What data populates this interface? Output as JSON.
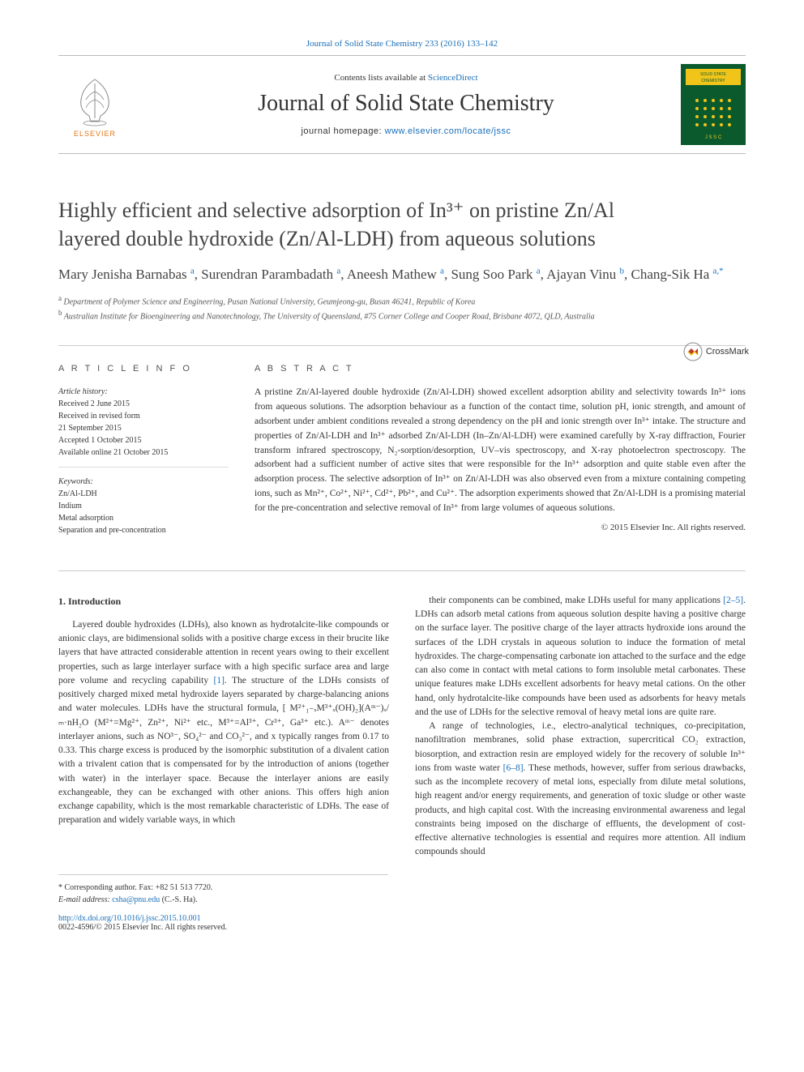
{
  "top_journal_link": "Journal of Solid State Chemistry 233 (2016) 133–142",
  "masthead": {
    "contents_prefix": "Contents lists available at ",
    "contents_link": "ScienceDirect",
    "journal_name": "Journal of Solid State Chemistry",
    "homepage_prefix": "journal homepage: ",
    "homepage_link": "www.elsevier.com/locate/jssc",
    "elsevier_label": "ELSEVIER",
    "cover_title_top": "SOLID STATE",
    "cover_title_bottom": "CHEMISTRY"
  },
  "crossmark_label": "CrossMark",
  "title_line1": "Highly efficient and selective adsorption of In³⁺ on pristine Zn/Al",
  "title_line2": "layered double hydroxide (Zn/Al-LDH) from aqueous solutions",
  "authors_html": "Mary Jenisha Barnabas <sup>a</sup>, Surendran Parambadath <sup>a</sup>, Aneesh Mathew <sup>a</sup>, Sung Soo Park <sup>a</sup>, Ajayan Vinu <sup>b</sup>, Chang-Sik Ha <sup>a,*</sup>",
  "authors": [
    {
      "name": "Mary Jenisha Barnabas",
      "aff": "a"
    },
    {
      "name": "Surendran Parambadath",
      "aff": "a"
    },
    {
      "name": "Aneesh Mathew",
      "aff": "a"
    },
    {
      "name": "Sung Soo Park",
      "aff": "a"
    },
    {
      "name": "Ajayan Vinu",
      "aff": "b"
    },
    {
      "name": "Chang-Sik Ha",
      "aff": "a,*"
    }
  ],
  "affiliations": {
    "a": "Department of Polymer Science and Engineering, Pusan National University, Geumjeong-gu, Busan 46241, Republic of Korea",
    "b": "Australian Institute for Bioengineering and Nanotechnology, The University of Queensland, #75 Corner College and Cooper Road, Brisbane 4072, QLD, Australia"
  },
  "article_info_heading": "A R T I C L E  I N F O",
  "abstract_heading": "A B S T R A C T",
  "history_heading": "Article history:",
  "history": [
    "Received 2 June 2015",
    "Received in revised form",
    "21 September 2015",
    "Accepted 1 October 2015",
    "Available online 21 October 2015"
  ],
  "keywords_heading": "Keywords:",
  "keywords": [
    "Zn/Al-LDH",
    "Indium",
    "Metal adsorption",
    "Separation and pre-concentration"
  ],
  "abstract": "A pristine Zn/Al-layered double hydroxide (Zn/Al-LDH) showed excellent adsorption ability and selectivity towards In³⁺ ions from aqueous solutions. The adsorption behaviour as a function of the contact time, solution pH, ionic strength, and amount of adsorbent under ambient conditions revealed a strong dependency on the pH and ionic strength over In³⁺ intake. The structure and properties of Zn/Al-LDH and In³⁺ adsorbed Zn/Al-LDH (In–Zn/Al-LDH) were examined carefully by X-ray diffraction, Fourier transform infrared spectroscopy, N₂-sorption/desorption, UV–vis spectroscopy, and X-ray photoelectron spectroscopy. The adsorbent had a sufficient number of active sites that were responsible for the In³⁺ adsorption and quite stable even after the adsorption process. The selective adsorption of In³⁺ on Zn/Al-LDH was also observed even from a mixture containing competing ions, such as Mn²⁺, Co²⁺, Ni²⁺, Cd²⁺, Pb²⁺, and Cu²⁺. The adsorption experiments showed that Zn/Al-LDH is a promising material for the pre-concentration and selective removal of In³⁺ from large volumes of aqueous solutions.",
  "copyright": "© 2015 Elsevier Inc. All rights reserved.",
  "section1_heading": "1.  Introduction",
  "col1": "Layered double hydroxides (LDHs), also known as hydrotalcite-like compounds or anionic clays, are bidimensional solids with a positive charge excess in their brucite like layers that have attracted considerable attention in recent years owing to their excellent properties, such as large interlayer surface with a high specific surface area and large pore volume and recycling capability [1]. The structure of the LDHs consists of positively charged mixed metal hydroxide layers separated by charge-balancing anions and water molecules. LDHs have the structural formula, [ M²⁺₁₋ₓM³⁺ₓ(OH)₂](Aᵐ⁻)ₓ/ₘ·nH₂O (M²⁺=Mg²⁺, Zn²⁺, Ni²⁺ etc., M³⁺=Al³⁺, Cr³⁺, Ga³⁺ etc.). Aᵐ⁻ denotes interlayer anions, such as NO³⁻, SO₄²⁻ and CO₃²⁻, and x typically ranges from 0.17 to 0.33. This charge excess is produced by the isomorphic substitution of a divalent cation with a trivalent cation that is compensated for by the introduction of anions (together with water) in the interlayer space. Because the interlayer anions are easily exchangeable, they can be exchanged with other anions. This offers high anion exchange capability, which is the most remarkable characteristic of LDHs. The ease of preparation and widely variable ways, in which",
  "col2_p1": "their components can be combined, make LDHs useful for many applications [2–5]. LDHs can adsorb metal cations from aqueous solution despite having a positive charge on the surface layer. The positive charge of the layer attracts hydroxide ions around the surfaces of the LDH crystals in aqueous solution to induce the formation of metal hydroxides. The charge-compensating carbonate ion attached to the surface and the edge can also come in contact with metal cations to form insoluble metal carbonates. These unique features make LDHs excellent adsorbents for heavy metal cations. On the other hand, only hydrotalcite-like compounds have been used as adsorbents for heavy metals and the use of LDHs for the selective removal of heavy metal ions are quite rare.",
  "col2_p2": "A range of technologies, i.e., electro-analytical techniques, co-precipitation, nanofiltration membranes, solid phase extraction, supercritical CO₂ extraction, biosorption, and extraction resin are employed widely for the recovery of soluble In³⁺ ions from waste water [6–8]. These methods, however, suffer from serious drawbacks, such as the incomplete recovery of metal ions, especially from dilute metal solutions, high reagent and/or energy requirements, and generation of toxic sludge or other waste products, and high capital cost. With the increasing environmental awareness and legal constraints being imposed on the discharge of effluents, the development of cost-effective alternative technologies is essential and requires more attention. All indium compounds should",
  "corr_label": "* Corresponding author. Fax: +82 51 513 7720.",
  "email_label": "E-mail address: ",
  "email_addr": "csha@pnu.edu",
  "email_name": " (C.-S. Ha).",
  "doi": "http://dx.doi.org/10.1016/j.jssc.2015.10.001",
  "issn_line": "0022-4596/© 2015 Elsevier Inc. All rights reserved.",
  "colors": {
    "link": "#1a6fb8",
    "elsevier": "#e67817",
    "cover_bg": "#0a5a2e",
    "cover_accent": "#f0c419"
  }
}
